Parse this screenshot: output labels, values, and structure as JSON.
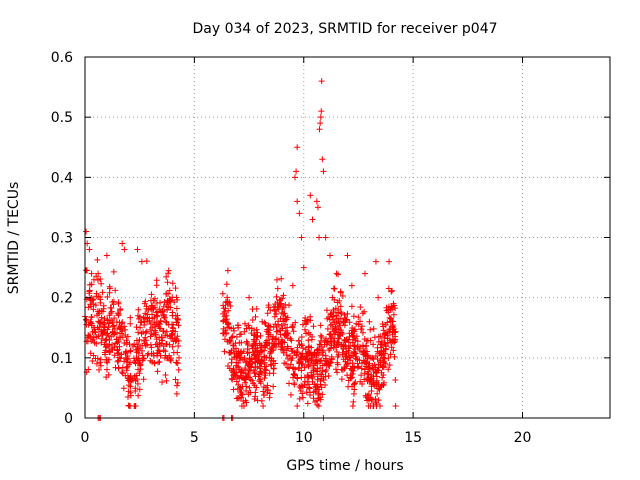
{
  "chart_data": {
    "type": "scatter",
    "title": "Day 034 of 2023, SRMTID for receiver p047",
    "xlabel": "GPS time / hours",
    "ylabel": "SRMTID / TECUs",
    "xlim": [
      0,
      24
    ],
    "ylim": [
      0,
      0.6
    ],
    "x_ticks": [
      0,
      5,
      10,
      15,
      20
    ],
    "x_tick_labels": [
      "0",
      "5",
      "10",
      "15",
      "20"
    ],
    "y_ticks": [
      0,
      0.1,
      0.2,
      0.3,
      0.4,
      0.5,
      0.6
    ],
    "y_tick_labels": [
      "0",
      "0.1",
      "0.2",
      "0.3",
      "0.4",
      "0.5",
      "0.6"
    ],
    "grid": true,
    "legend": "none",
    "marker": "+",
    "series_color": "#ff0000",
    "segments": [
      {
        "x_start": 0.0,
        "x_end": 4.3,
        "mean": 0.13,
        "spread": 0.07,
        "count": 520
      },
      {
        "x_start": 6.3,
        "x_end": 14.2,
        "mean": 0.11,
        "spread": 0.06,
        "count": 1100
      }
    ],
    "points": [
      [
        0.05,
        0.31
      ],
      [
        0.1,
        0.29
      ],
      [
        0.2,
        0.28
      ],
      [
        0.3,
        0.24
      ],
      [
        0.6,
        0.24
      ],
      [
        1.0,
        0.27
      ],
      [
        1.7,
        0.29
      ],
      [
        1.8,
        0.28
      ],
      [
        2.4,
        0.28
      ],
      [
        2.6,
        0.26
      ],
      [
        2.9,
        0.18
      ],
      [
        3.6,
        0.17
      ],
      [
        3.7,
        0.16
      ],
      [
        4.0,
        0.14
      ],
      [
        4.2,
        0.04
      ],
      [
        7.0,
        0.15
      ],
      [
        7.5,
        0.2
      ],
      [
        8.1,
        0.16
      ],
      [
        9.0,
        0.13
      ],
      [
        9.5,
        0.22
      ],
      [
        9.6,
        0.4
      ],
      [
        9.65,
        0.41
      ],
      [
        9.7,
        0.45
      ],
      [
        9.7,
        0.36
      ],
      [
        9.8,
        0.34
      ],
      [
        9.9,
        0.3
      ],
      [
        10.0,
        0.25
      ],
      [
        10.3,
        0.37
      ],
      [
        10.4,
        0.33
      ],
      [
        10.6,
        0.36
      ],
      [
        10.65,
        0.35
      ],
      [
        10.7,
        0.3
      ],
      [
        10.72,
        0.48
      ],
      [
        10.75,
        0.49
      ],
      [
        10.78,
        0.5
      ],
      [
        10.8,
        0.51
      ],
      [
        10.82,
        0.56
      ],
      [
        10.85,
        0.43
      ],
      [
        10.9,
        0.41
      ],
      [
        11.0,
        0.3
      ],
      [
        11.2,
        0.27
      ],
      [
        11.5,
        0.24
      ],
      [
        12.0,
        0.27
      ],
      [
        12.2,
        0.22
      ],
      [
        12.8,
        0.24
      ],
      [
        13.0,
        0.16
      ],
      [
        13.3,
        0.26
      ],
      [
        13.4,
        0.2
      ],
      [
        13.9,
        0.26
      ],
      [
        14.0,
        0.21
      ],
      [
        14.1,
        0.19
      ],
      [
        14.2,
        0.02
      ]
    ],
    "zero_points": [
      0.6,
      0.65,
      0.7,
      6.3,
      6.35,
      6.7,
      6.75,
      10.9
    ]
  }
}
